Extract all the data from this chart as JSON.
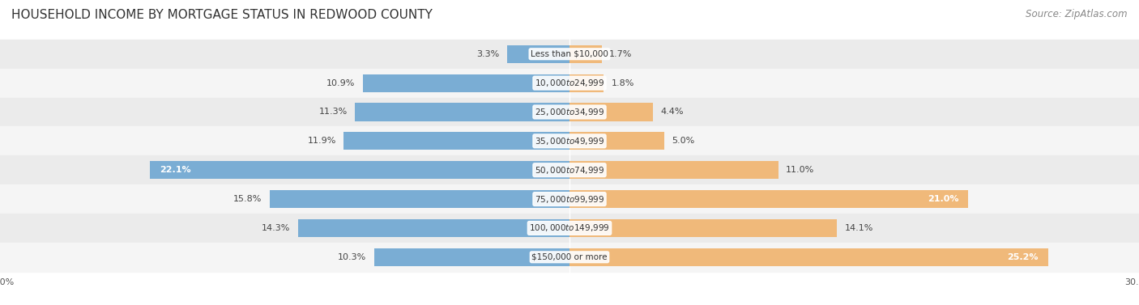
{
  "title": "HOUSEHOLD INCOME BY MORTGAGE STATUS IN REDWOOD COUNTY",
  "source": "Source: ZipAtlas.com",
  "categories": [
    "Less than $10,000",
    "$10,000 to $24,999",
    "$25,000 to $34,999",
    "$35,000 to $49,999",
    "$50,000 to $74,999",
    "$75,000 to $99,999",
    "$100,000 to $149,999",
    "$150,000 or more"
  ],
  "without_mortgage": [
    3.3,
    10.9,
    11.3,
    11.9,
    22.1,
    15.8,
    14.3,
    10.3
  ],
  "with_mortgage": [
    1.7,
    1.8,
    4.4,
    5.0,
    11.0,
    21.0,
    14.1,
    25.2
  ],
  "color_without": "#7aadd4",
  "color_with": "#f0b97a",
  "xlim": 30.0,
  "title_fontsize": 11,
  "source_fontsize": 8.5,
  "label_fontsize": 8,
  "category_fontsize": 7.5,
  "legend_fontsize": 9,
  "axis_label_fontsize": 8
}
